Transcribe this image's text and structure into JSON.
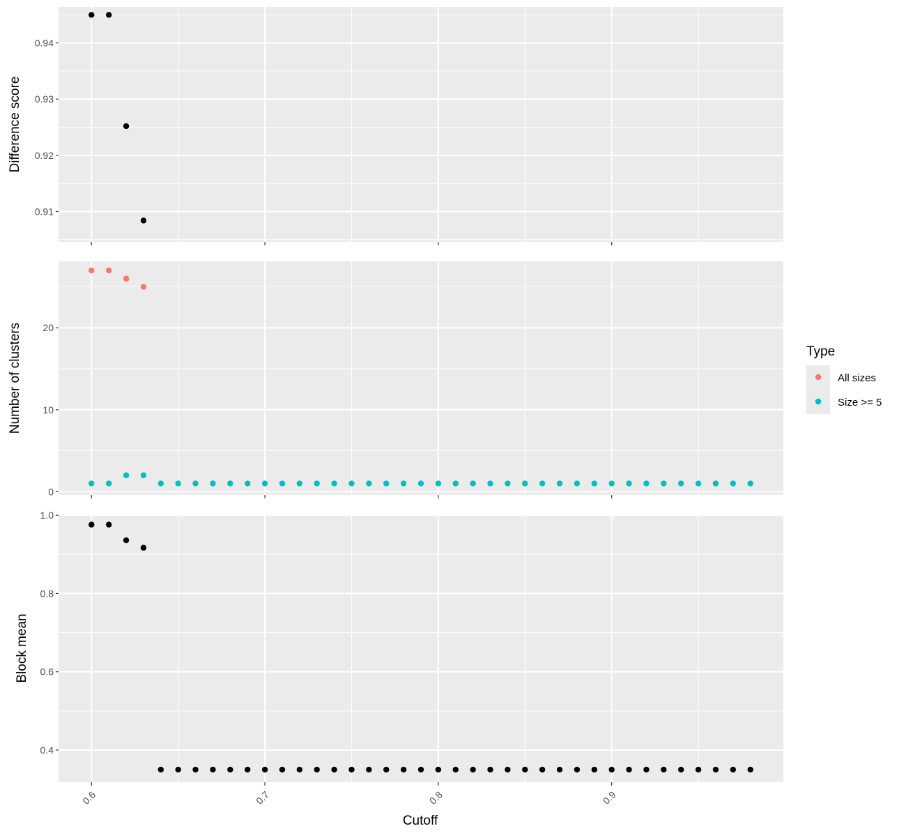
{
  "chart_data": [
    {
      "type": "scatter",
      "ylabel": "Difference score",
      "xlabel": "",
      "xlim": [
        0.581,
        0.999
      ],
      "ylim": [
        0.9046,
        0.9464
      ],
      "x_ticks": [
        0.6,
        0.7,
        0.8,
        0.9
      ],
      "y_ticks": [
        0.91,
        0.92,
        0.93,
        0.94
      ],
      "y_tick_labels": [
        "0.91",
        "0.92",
        "0.93",
        "0.94"
      ],
      "grid": true,
      "series": [
        {
          "name": "",
          "color": "#000000",
          "x": [
            0.6,
            0.61,
            0.62,
            0.63
          ],
          "y": [
            0.945,
            0.945,
            0.9252,
            0.9084
          ]
        }
      ]
    },
    {
      "type": "scatter",
      "ylabel": "Number of clusters",
      "xlabel": "",
      "xlim": [
        0.581,
        0.999
      ],
      "ylim": [
        -0.4,
        28.1
      ],
      "x_ticks": [
        0.6,
        0.7,
        0.8,
        0.9
      ],
      "y_ticks": [
        0,
        10,
        20
      ],
      "y_tick_labels": [
        "0",
        "10",
        "20"
      ],
      "grid": true,
      "series": [
        {
          "name": "All sizes",
          "color": "#F8766D",
          "x": [
            0.6,
            0.61,
            0.62,
            0.63
          ],
          "y": [
            27,
            27,
            26,
            25
          ]
        },
        {
          "name": "Size >= 5",
          "color": "#00BFC4",
          "x": [
            0.6,
            0.61,
            0.62,
            0.63,
            0.64,
            0.65,
            0.66,
            0.67,
            0.68,
            0.69,
            0.7,
            0.71,
            0.72,
            0.73,
            0.74,
            0.75,
            0.76,
            0.77,
            0.78,
            0.79,
            0.8,
            0.81,
            0.82,
            0.83,
            0.84,
            0.85,
            0.86,
            0.87,
            0.88,
            0.89,
            0.9,
            0.91,
            0.92,
            0.93,
            0.94,
            0.95,
            0.96,
            0.97,
            0.98
          ],
          "y": [
            1,
            1,
            2,
            2,
            1,
            1,
            1,
            1,
            1,
            1,
            1,
            1,
            1,
            1,
            1,
            1,
            1,
            1,
            1,
            1,
            1,
            1,
            1,
            1,
            1,
            1,
            1,
            1,
            1,
            1,
            1,
            1,
            1,
            1,
            1,
            1,
            1,
            1,
            1
          ]
        }
      ]
    },
    {
      "type": "scatter",
      "ylabel": "Block mean",
      "xlabel": "Cutoff",
      "xlim": [
        0.581,
        0.999
      ],
      "ylim": [
        0.318,
        1.002
      ],
      "x_ticks": [
        0.6,
        0.7,
        0.8,
        0.9
      ],
      "x_tick_labels": [
        "0.6",
        "0.7",
        "0.8",
        "0.9"
      ],
      "y_ticks": [
        0.4,
        0.6,
        0.8,
        1.0
      ],
      "y_tick_labels": [
        "0.4",
        "0.6",
        "0.8",
        "1.0"
      ],
      "grid": true,
      "series": [
        {
          "name": "",
          "color": "#000000",
          "x": [
            0.6,
            0.61,
            0.62,
            0.63,
            0.64,
            0.65,
            0.66,
            0.67,
            0.68,
            0.69,
            0.7,
            0.71,
            0.72,
            0.73,
            0.74,
            0.75,
            0.76,
            0.77,
            0.78,
            0.79,
            0.8,
            0.81,
            0.82,
            0.83,
            0.84,
            0.85,
            0.86,
            0.87,
            0.88,
            0.89,
            0.9,
            0.91,
            0.92,
            0.93,
            0.94,
            0.95,
            0.96,
            0.97,
            0.98
          ],
          "y": [
            0.976,
            0.976,
            0.936,
            0.917,
            0.35,
            0.35,
            0.35,
            0.35,
            0.35,
            0.35,
            0.35,
            0.35,
            0.35,
            0.35,
            0.35,
            0.35,
            0.35,
            0.35,
            0.35,
            0.35,
            0.35,
            0.35,
            0.35,
            0.35,
            0.35,
            0.35,
            0.35,
            0.35,
            0.35,
            0.35,
            0.35,
            0.35,
            0.35,
            0.35,
            0.35,
            0.35,
            0.35,
            0.35,
            0.35
          ]
        }
      ]
    }
  ],
  "legend": {
    "title": "Type",
    "placement": "right",
    "items": [
      {
        "label": "All sizes",
        "color": "#F8766D"
      },
      {
        "label": "Size >= 5",
        "color": "#00BFC4"
      }
    ]
  },
  "colors": {
    "panel_background": "#EBEBEB",
    "grid": "#FFFFFF",
    "default_point": "#000000"
  }
}
